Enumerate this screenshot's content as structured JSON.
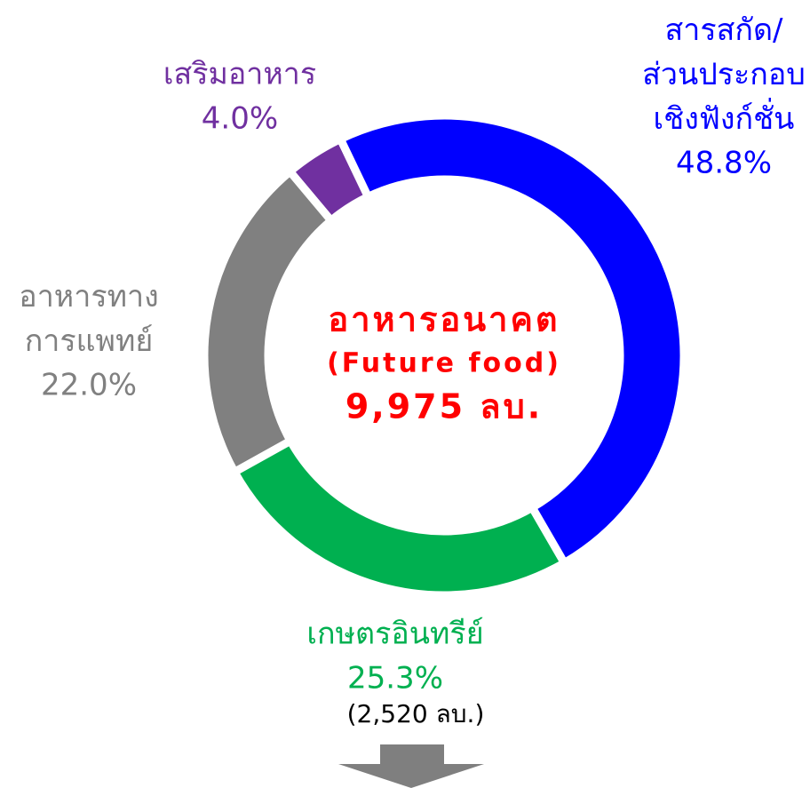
{
  "chart_data": {
    "type": "donut",
    "categories": [
      "สารสกัด/\nส่วนประกอบ\nเชิงฟังก์ชั่น",
      "เกษตรอินทรีย์",
      "อาหารทาง\nการแพทย์",
      "เสริมอาหาร"
    ],
    "values": [
      48.8,
      25.3,
      22.0,
      4.0
    ],
    "value_labels": [
      "48.8%",
      "25.3%",
      "22.0%",
      "4.0%"
    ],
    "colors": [
      "#0000ff",
      "#00b050",
      "#808080",
      "#7030a0"
    ],
    "center_text": [
      "อาหารอนาคต",
      "(Future food)",
      "9,975 ลบ."
    ],
    "note": "(2,520 ลบ.)"
  }
}
